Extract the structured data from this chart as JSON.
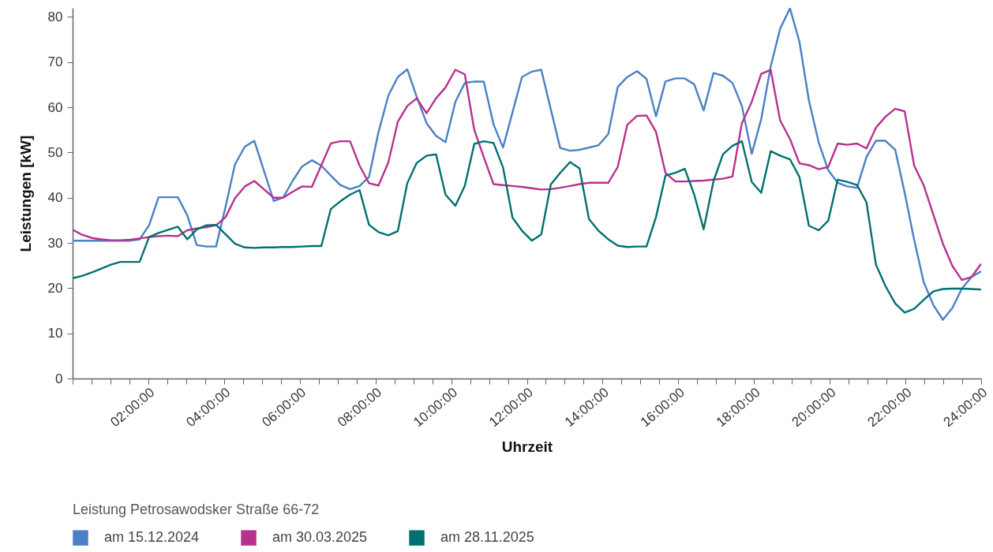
{
  "chart_data": {
    "type": "line",
    "xlabel": "Uhrzeit",
    "ylabel": "Leistungen [kW]",
    "legend_title": "Leistung Petrosawodsker Straße 66-72",
    "legend": "bottom",
    "x": [
      0,
      0.25,
      0.51,
      0.76,
      1.01,
      1.26,
      1.52,
      1.77,
      2.02,
      2.27,
      2.53,
      2.78,
      3.03,
      3.28,
      3.54,
      3.79,
      4.04,
      4.29,
      4.55,
      4.8,
      5.05,
      5.31,
      5.56,
      5.81,
      6.06,
      6.32,
      6.57,
      6.82,
      7.07,
      7.33,
      7.58,
      7.83,
      8.08,
      8.34,
      8.59,
      8.84,
      9.09,
      9.35,
      9.6,
      9.85,
      10.11,
      10.36,
      10.61,
      10.86,
      11.12,
      11.37,
      11.62,
      11.87,
      12.13,
      12.38,
      12.63,
      12.88,
      13.14,
      13.39,
      13.64,
      13.89,
      14.15,
      14.4,
      14.65,
      14.91,
      15.16,
      15.41,
      15.66,
      15.92,
      16.17,
      16.42,
      16.67,
      16.93,
      17.18,
      17.43,
      17.68,
      17.94,
      18.19,
      18.44,
      18.69,
      18.95,
      19.2,
      19.45,
      19.71,
      19.96,
      20.21,
      20.46,
      20.72,
      20.97,
      21.22,
      21.47,
      21.73,
      21.98,
      22.23,
      22.48,
      22.74,
      22.99,
      23.24,
      23.49,
      23.75,
      24
    ],
    "xlim": [
      0,
      24
    ],
    "xticks": [
      {
        "value": 0,
        "label": null
      },
      {
        "value": 0.5,
        "label": null
      },
      {
        "value": 1,
        "label": null
      },
      {
        "value": 1.5,
        "label": null
      },
      {
        "value": 2,
        "label": "02:00:00"
      },
      {
        "value": 2.5,
        "label": null
      },
      {
        "value": 3,
        "label": null
      },
      {
        "value": 3.5,
        "label": null
      },
      {
        "value": 4,
        "label": "04:00:00"
      },
      {
        "value": 4.5,
        "label": null
      },
      {
        "value": 5,
        "label": null
      },
      {
        "value": 5.5,
        "label": null
      },
      {
        "value": 6,
        "label": "06:00:00"
      },
      {
        "value": 6.5,
        "label": null
      },
      {
        "value": 7,
        "label": null
      },
      {
        "value": 7.5,
        "label": null
      },
      {
        "value": 8,
        "label": "08:00:00"
      },
      {
        "value": 8.5,
        "label": null
      },
      {
        "value": 9,
        "label": null
      },
      {
        "value": 9.5,
        "label": null
      },
      {
        "value": 10,
        "label": "10:00:00"
      },
      {
        "value": 10.5,
        "label": null
      },
      {
        "value": 11,
        "label": null
      },
      {
        "value": 11.5,
        "label": null
      },
      {
        "value": 12,
        "label": "12:00:00"
      },
      {
        "value": 12.5,
        "label": null
      },
      {
        "value": 13,
        "label": null
      },
      {
        "value": 13.5,
        "label": null
      },
      {
        "value": 14,
        "label": "14:00:00"
      },
      {
        "value": 14.5,
        "label": null
      },
      {
        "value": 15,
        "label": null
      },
      {
        "value": 15.5,
        "label": null
      },
      {
        "value": 16,
        "label": "16:00:00"
      },
      {
        "value": 16.5,
        "label": null
      },
      {
        "value": 17,
        "label": null
      },
      {
        "value": 17.5,
        "label": null
      },
      {
        "value": 18,
        "label": "18:00:00"
      },
      {
        "value": 18.5,
        "label": null
      },
      {
        "value": 19,
        "label": null
      },
      {
        "value": 19.5,
        "label": null
      },
      {
        "value": 20,
        "label": "20:00:00"
      },
      {
        "value": 20.5,
        "label": null
      },
      {
        "value": 21,
        "label": null
      },
      {
        "value": 21.5,
        "label": null
      },
      {
        "value": 22,
        "label": "22:00:00"
      },
      {
        "value": 22.5,
        "label": null
      },
      {
        "value": 23,
        "label": null
      },
      {
        "value": 23.5,
        "label": null
      },
      {
        "value": 24,
        "label": "24:00:00"
      }
    ],
    "ylim": [
      0,
      82
    ],
    "yticks": [
      0,
      10,
      20,
      30,
      40,
      50,
      60,
      70,
      80
    ],
    "series": [
      {
        "name": "am 15.12.2024",
        "color": "#4a80c5",
        "values": [
          30.5,
          30.5,
          30.5,
          30.5,
          30.5,
          30.5,
          30.5,
          30.8,
          33.9,
          40.1,
          40.1,
          40.1,
          36.1,
          29.5,
          29.2,
          29.2,
          38.0,
          47.4,
          51.3,
          52.6,
          46.1,
          39.3,
          40.0,
          43.7,
          46.9,
          48.3,
          47.1,
          44.9,
          42.8,
          41.9,
          42.6,
          44.6,
          54.5,
          62.6,
          66.7,
          68.4,
          62.3,
          56.5,
          53.7,
          52.3,
          61.2,
          65.4,
          65.7,
          65.7,
          56.2,
          51.1,
          58.9,
          66.7,
          67.9,
          68.3,
          59.6,
          51.0,
          50.4,
          50.6,
          51.1,
          51.6,
          54.1,
          64.5,
          66.7,
          68.0,
          66.3,
          58.0,
          65.7,
          66.4,
          66.4,
          65.1,
          59.3,
          67.6,
          67.0,
          65.4,
          60.3,
          49.7,
          57.4,
          69.0,
          77.4,
          81.9,
          74.5,
          61.5,
          52.2,
          46.1,
          43.3,
          42.5,
          42.2,
          49.0,
          52.6,
          52.6,
          50.6,
          41.1,
          30.7,
          21.4,
          16.2,
          13.0,
          15.6,
          19.9,
          22.5,
          23.7
        ]
      },
      {
        "name": "am 30.03.2025",
        "color": "#b8318e",
        "values": [
          32.9,
          31.8,
          31.1,
          30.8,
          30.6,
          30.6,
          30.7,
          31.0,
          31.3,
          31.5,
          31.6,
          31.5,
          32.8,
          33.2,
          33.5,
          33.9,
          35.7,
          39.9,
          42.5,
          43.7,
          41.9,
          40.0,
          40.0,
          41.3,
          42.5,
          42.4,
          47.2,
          52.0,
          52.5,
          52.5,
          47.1,
          43.2,
          42.7,
          47.8,
          56.8,
          60.3,
          62.0,
          58.7,
          62.0,
          64.4,
          68.3,
          67.3,
          55.0,
          49.0,
          43.0,
          42.8,
          42.6,
          42.4,
          42.1,
          41.8,
          41.9,
          42.2,
          42.6,
          43.0,
          43.3,
          43.3,
          43.3,
          46.8,
          56.1,
          58.1,
          58.2,
          54.6,
          45.5,
          43.6,
          43.6,
          43.7,
          43.8,
          44.0,
          44.2,
          44.7,
          56.5,
          61.2,
          67.4,
          68.3,
          57.1,
          53.0,
          47.6,
          47.2,
          46.3,
          46.8,
          52.0,
          51.7,
          52.0,
          50.9,
          55.5,
          57.9,
          59.7,
          59.1,
          47.1,
          42.8,
          36.2,
          29.8,
          24.9,
          21.8,
          22.5,
          25.4
        ]
      },
      {
        "name": "am 28.11.2025",
        "color": "#00716f",
        "values": [
          22.2,
          22.7,
          23.5,
          24.3,
          25.2,
          25.8,
          25.8,
          25.8,
          31.3,
          32.2,
          32.9,
          33.6,
          30.8,
          33.0,
          33.9,
          34.0,
          31.9,
          29.8,
          29.0,
          28.9,
          29.0,
          29.0,
          29.1,
          29.1,
          29.2,
          29.3,
          29.3,
          37.5,
          39.2,
          40.7,
          41.7,
          34.0,
          32.4,
          31.7,
          32.6,
          43.2,
          47.7,
          49.3,
          49.6,
          40.7,
          38.2,
          42.6,
          51.9,
          52.5,
          52.1,
          46.7,
          35.6,
          32.7,
          30.5,
          31.9,
          42.9,
          45.5,
          47.9,
          46.5,
          35.3,
          32.7,
          30.8,
          29.4,
          29.1,
          29.2,
          29.2,
          35.7,
          44.9,
          45.5,
          46.4,
          40.7,
          33.0,
          43.7,
          49.6,
          51.5,
          52.5,
          43.5,
          41.1,
          50.3,
          49.3,
          48.5,
          44.6,
          33.8,
          32.8,
          34.9,
          44.0,
          43.5,
          42.8,
          39.0,
          25.2,
          20.5,
          16.6,
          14.6,
          15.4,
          17.4,
          19.3,
          19.8,
          19.9,
          19.9,
          19.8,
          19.7
        ]
      }
    ]
  }
}
